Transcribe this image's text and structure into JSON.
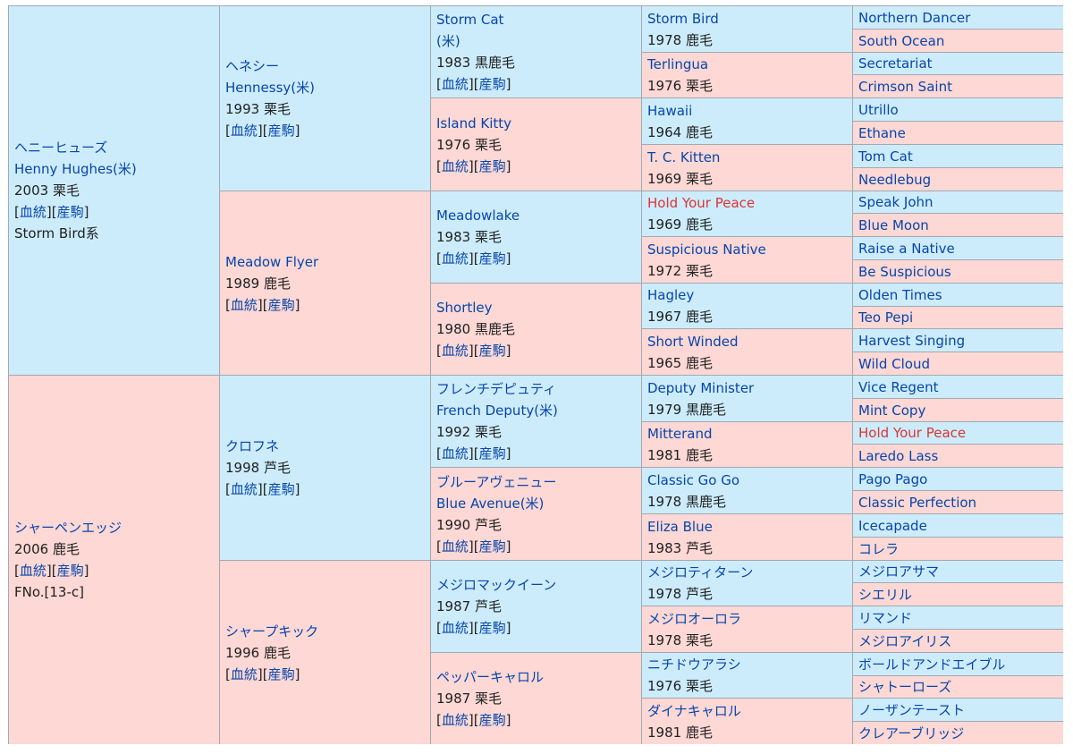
{
  "labels": {
    "bloodline": "血統",
    "progeny": "産駒",
    "lb": "[",
    "rb": "]"
  },
  "colors": {
    "male": "#cdecfb",
    "female": "#fdd8d4",
    "border": "#a2a9b1",
    "link": "#0645ad",
    "redlink": "#dd3333"
  },
  "gen1": [
    {
      "jp": "ヘニーヒューズ",
      "en": "Henny Hughes(米)",
      "info": "2003 栗毛",
      "extra": "Storm Bird系"
    },
    {
      "jp": "シャーペンエッジ",
      "info": "2006 鹿毛",
      "extra": "FNo.[13-c]"
    }
  ],
  "gen2": [
    {
      "jp": "ヘネシー",
      "en": "Hennessy(米)",
      "info": "1993 栗毛"
    },
    {
      "name": "Meadow Flyer",
      "info": "1989 鹿毛"
    },
    {
      "name": "クロフネ",
      "info": "1998 芦毛"
    },
    {
      "name": "シャープキック",
      "info": "1996 鹿毛"
    }
  ],
  "gen3": [
    {
      "name": "Storm Cat",
      "line2": "(米)",
      "info": "1983 黒鹿毛"
    },
    {
      "name": "Island Kitty",
      "info": "1976 栗毛"
    },
    {
      "name": "Meadowlake",
      "info": "1983 栗毛"
    },
    {
      "name": "Shortley",
      "info": "1980 黒鹿毛"
    },
    {
      "name": "フレンチデピュティ",
      "line2": "French Deputy(米)",
      "info": "1992 栗毛"
    },
    {
      "name": "ブルーアヴェニュー",
      "line2": "Blue Avenue(米)",
      "info": "1990 芦毛"
    },
    {
      "name": "メジロマックイーン",
      "info": "1987 芦毛"
    },
    {
      "name": "ペッパーキャロル",
      "info": "1987 栗毛"
    }
  ],
  "gen4": [
    {
      "name": "Storm Bird",
      "info": "1978 鹿毛"
    },
    {
      "name": "Terlingua",
      "info": "1976 栗毛"
    },
    {
      "name": "Hawaii",
      "info": "1964 鹿毛"
    },
    {
      "name": "T. C. Kitten",
      "info": "1969 栗毛"
    },
    {
      "name": "Hold Your Peace",
      "info": "1969 鹿毛",
      "red": true
    },
    {
      "name": "Suspicious Native",
      "info": "1972 栗毛"
    },
    {
      "name": "Hagley",
      "info": "1967 鹿毛"
    },
    {
      "name": "Short Winded",
      "info": "1965 鹿毛"
    },
    {
      "name": "Deputy Minister",
      "info": "1979 黒鹿毛"
    },
    {
      "name": "Mitterand",
      "info": "1981 鹿毛"
    },
    {
      "name": "Classic Go Go",
      "info": "1978 黒鹿毛"
    },
    {
      "name": "Eliza Blue",
      "info": "1983 芦毛"
    },
    {
      "name": "メジロティターン",
      "info": "1978 芦毛"
    },
    {
      "name": "メジロオーロラ",
      "info": "1978 栗毛"
    },
    {
      "name": "ニチドウアラシ",
      "info": "1976 栗毛"
    },
    {
      "name": "ダイナキャロル",
      "info": "1981 鹿毛"
    }
  ],
  "gen5": [
    {
      "name": "Northern Dancer"
    },
    {
      "name": "South Ocean"
    },
    {
      "name": "Secretariat"
    },
    {
      "name": "Crimson Saint"
    },
    {
      "name": "Utrillo"
    },
    {
      "name": "Ethane"
    },
    {
      "name": "Tom Cat"
    },
    {
      "name": "Needlebug"
    },
    {
      "name": "Speak John"
    },
    {
      "name": "Blue Moon"
    },
    {
      "name": "Raise a Native"
    },
    {
      "name": "Be Suspicious"
    },
    {
      "name": "Olden Times"
    },
    {
      "name": "Teo Pepi"
    },
    {
      "name": "Harvest Singing"
    },
    {
      "name": "Wild Cloud"
    },
    {
      "name": "Vice Regent"
    },
    {
      "name": "Mint Copy"
    },
    {
      "name": "Hold Your Peace",
      "red": true
    },
    {
      "name": "Laredo Lass"
    },
    {
      "name": "Pago Pago"
    },
    {
      "name": "Classic Perfection"
    },
    {
      "name": "Icecapade"
    },
    {
      "name": "コレラ"
    },
    {
      "name": "メジロアサマ"
    },
    {
      "name": "シエリル"
    },
    {
      "name": "リマンド"
    },
    {
      "name": "メジロアイリス"
    },
    {
      "name": "ボールドアンドエイブル"
    },
    {
      "name": "シャトーローズ"
    },
    {
      "name": "ノーザンテースト"
    },
    {
      "name": "クレアーブリッジ"
    }
  ]
}
